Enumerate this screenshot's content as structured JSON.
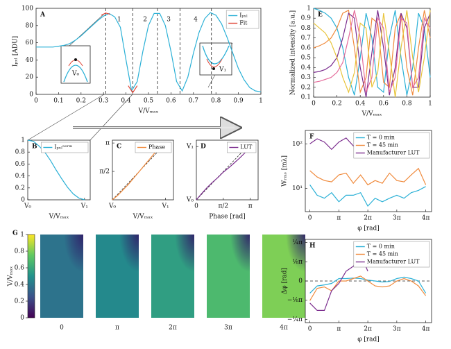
{
  "chart_data": [
    {
      "type": "line",
      "panel": "A",
      "xlabel": "V/Vₘₐₓ",
      "ylabel": "Iₚₓₗ [ADU]",
      "xlim": [
        0,
        1
      ],
      "ylim": [
        0,
        100
      ],
      "xticks": [
        0,
        0.1,
        0.2,
        0.3,
        0.4,
        0.5,
        0.6,
        0.7,
        0.8,
        0.9,
        1
      ],
      "yticks": [
        0,
        20,
        40,
        60,
        80,
        100
      ],
      "legend": "upper right",
      "series": [
        {
          "name": "Iₚₓₗ",
          "color": "#2ab0d6",
          "x": [
            0,
            0.025,
            0.05,
            0.075,
            0.1,
            0.125,
            0.15,
            0.175,
            0.2,
            0.225,
            0.25,
            0.275,
            0.3,
            0.325,
            0.35,
            0.375,
            0.4,
            0.425,
            0.45,
            0.475,
            0.5,
            0.525,
            0.55,
            0.575,
            0.6,
            0.625,
            0.65,
            0.675,
            0.7,
            0.725,
            0.75,
            0.775,
            0.8,
            0.825,
            0.85,
            0.875,
            0.9,
            0.925,
            0.95,
            0.975,
            1
          ],
          "values": [
            55,
            55,
            55,
            55,
            56,
            57,
            59,
            63,
            68,
            74,
            80,
            86,
            91,
            94,
            90,
            78,
            40,
            4,
            15,
            50,
            80,
            94,
            94,
            80,
            50,
            15,
            4,
            20,
            48,
            72,
            88,
            95,
            92,
            82,
            66,
            48,
            30,
            17,
            8,
            4,
            3
          ]
        },
        {
          "name": "Fit",
          "color": "#e0483a",
          "x": [
            0.29,
            0.31,
            0.33,
            0.37,
            0.41,
            0.43,
            0.45
          ],
          "values": [
            92,
            94.5,
            93,
            null,
            10,
            2,
            10
          ]
        }
      ],
      "vlines": [
        0.31,
        0.43,
        0.54,
        0.64,
        0.78
      ],
      "regions": [
        {
          "label": "1",
          "x": 0.37
        },
        {
          "label": "2",
          "x": 0.485
        },
        {
          "label": "3",
          "x": 0.59
        },
        {
          "label": "4",
          "x": 0.71
        }
      ],
      "insets": [
        {
          "label": "V₀"
        },
        {
          "label": "V₁"
        }
      ]
    },
    {
      "type": "line",
      "panel": "B",
      "xlabel": "V/Vₘₐₓ",
      "xlim": [
        0,
        1.1
      ],
      "ylim": [
        0,
        1
      ],
      "xticks": [
        {
          "value": 0,
          "label": "V₀"
        },
        {
          "value": 1,
          "label": "V₁"
        }
      ],
      "yticks": [
        0,
        0.2,
        0.4,
        0.6,
        0.8,
        1
      ],
      "legend": "upper right",
      "series": [
        {
          "name": "Iₚₓₗⁿᵒʳᵐ",
          "color": "#2ab0d6",
          "x": [
            0,
            0.1,
            0.2,
            0.3,
            0.4,
            0.5,
            0.6,
            0.7,
            0.8,
            0.9,
            1
          ],
          "values": [
            1,
            0.98,
            0.9,
            0.8,
            0.66,
            0.5,
            0.35,
            0.21,
            0.1,
            0.03,
            0
          ]
        }
      ]
    },
    {
      "type": "line",
      "panel": "C",
      "xlabel": "V/Vₘₐₓ",
      "xlim": [
        0,
        1.15
      ],
      "ylim": [
        0,
        3.3
      ],
      "xticks": [
        {
          "value": 0,
          "label": "V₀"
        },
        {
          "value": 1,
          "label": "V₁"
        }
      ],
      "yticks": [
        {
          "value": 1.571,
          "label": "π/2"
        },
        {
          "value": 3.142,
          "label": "π"
        }
      ],
      "legend": "upper right",
      "series": [
        {
          "name": "Phase",
          "color": "#f08a3c",
          "x": [
            0,
            0.1,
            0.2,
            0.3,
            0.4,
            0.5,
            0.6,
            0.7,
            0.8,
            0.9,
            1
          ],
          "values": [
            0,
            0.25,
            0.55,
            0.85,
            1.2,
            1.55,
            1.9,
            2.25,
            2.6,
            2.9,
            3.14
          ]
        }
      ]
    },
    {
      "type": "line",
      "panel": "D",
      "xlabel": "Phase [rad]",
      "xlim": [
        0,
        3.6
      ],
      "ylim": [
        0,
        1.12
      ],
      "xticks": [
        0,
        {
          "value": 1.571,
          "label": "π/2"
        },
        {
          "value": 3.142,
          "label": "π"
        }
      ],
      "yticks": [
        {
          "value": 0,
          "label": "V₀"
        },
        {
          "value": 1,
          "label": "V₁"
        }
      ],
      "legend": "upper right",
      "series": [
        {
          "name": "LUT",
          "color": "#7b2d8e",
          "x": [
            0,
            0.314,
            0.628,
            0.942,
            1.257,
            1.571,
            1.885,
            2.199,
            2.513,
            2.827,
            3.142
          ],
          "values": [
            0,
            0.12,
            0.23,
            0.33,
            0.42,
            0.52,
            0.6,
            0.69,
            0.78,
            0.88,
            1
          ]
        }
      ]
    },
    {
      "type": "line",
      "panel": "E",
      "xlabel": "V/Vₘₐₓ",
      "ylabel": "Normalized intensity [a.u.]",
      "xlim": [
        0,
        1
      ],
      "ylim": [
        0.1,
        1
      ],
      "xticks": [
        0,
        0.2,
        0.4,
        0.6,
        0.8,
        1
      ],
      "yticks": [
        0.1,
        0.2,
        0.3,
        0.4,
        0.5,
        0.6,
        0.7,
        0.8,
        0.9,
        1
      ],
      "x": [
        0,
        0.05,
        0.1,
        0.15,
        0.2,
        0.25,
        0.3,
        0.35,
        0.4,
        0.45,
        0.5,
        0.55,
        0.6,
        0.65,
        0.7,
        0.75,
        0.8,
        0.85,
        0.9,
        0.95,
        1
      ],
      "series": [
        {
          "color": "#2ab0d6",
          "values": [
            1.0,
            0.98,
            0.95,
            0.9,
            0.8,
            0.6,
            0.3,
            0.12,
            0.5,
            0.95,
            0.7,
            0.2,
            0.15,
            0.7,
            0.98,
            0.5,
            0.12,
            0.4,
            0.95,
            0.8,
            0.3
          ]
        },
        {
          "color": "#f08a3c",
          "values": [
            0.6,
            0.62,
            0.65,
            0.7,
            0.8,
            0.95,
            0.98,
            0.6,
            0.15,
            0.3,
            0.9,
            0.85,
            0.25,
            0.2,
            0.8,
            0.95,
            0.4,
            0.12,
            0.6,
            0.98,
            0.7
          ]
        },
        {
          "color": "#7b2d8e",
          "values": [
            0.35,
            0.36,
            0.38,
            0.42,
            0.5,
            0.7,
            0.95,
            0.9,
            0.4,
            0.1,
            0.55,
            0.98,
            0.6,
            0.12,
            0.4,
            0.95,
            0.8,
            0.2,
            0.2,
            0.8,
            0.95
          ]
        },
        {
          "color": "#e8c43a",
          "values": [
            0.85,
            0.8,
            0.75,
            0.65,
            0.5,
            0.3,
            0.15,
            0.35,
            0.85,
            0.8,
            0.2,
            0.35,
            0.95,
            0.55,
            0.1,
            0.6,
            0.98,
            0.5,
            0.15,
            0.5,
            0.98
          ]
        },
        {
          "color": "#e46a9a",
          "values": [
            0.25,
            0.26,
            0.28,
            0.3,
            0.35,
            0.45,
            0.7,
            0.98,
            0.7,
            0.15,
            0.3,
            0.9,
            0.8,
            0.15,
            0.3,
            0.9,
            0.85,
            0.2,
            0.3,
            0.9,
            0.8
          ]
        }
      ]
    },
    {
      "type": "line",
      "panel": "F",
      "xlabel": "φ [rad]",
      "ylabel": "Wᵣₘₛ [mλ]",
      "log_y": true,
      "xlim": [
        -0.5,
        13.2
      ],
      "ylim": [
        3,
        200
      ],
      "xticks": [
        0,
        {
          "value": 3.142,
          "label": "π"
        },
        {
          "value": 6.283,
          "label": "2π"
        },
        {
          "value": 9.425,
          "label": "3π"
        },
        {
          "value": 12.566,
          "label": "4π"
        }
      ],
      "yticks": [
        {
          "value": 10,
          "label": "10¹"
        },
        {
          "value": 100,
          "label": "10²"
        }
      ],
      "legend": "upper right",
      "x": [
        0,
        0.785,
        1.571,
        2.356,
        3.142,
        3.927,
        4.712,
        5.498,
        6.283,
        7.069,
        7.854,
        8.639,
        9.425,
        10.21,
        10.996,
        11.781,
        12.566
      ],
      "series": [
        {
          "name": "T = 0 min",
          "color": "#2ab0d6",
          "values": [
            12,
            7,
            6,
            8,
            5,
            7,
            7,
            8,
            4,
            6,
            5,
            6,
            7,
            6,
            8,
            9,
            11
          ]
        },
        {
          "name": "T = 45 min",
          "color": "#f08a3c",
          "values": [
            25,
            18,
            15,
            14,
            20,
            22,
            13,
            20,
            12,
            15,
            13,
            22,
            15,
            14,
            20,
            28,
            12
          ]
        },
        {
          "name": "Manufacturer LUT",
          "color": "#7b2d8e",
          "values": [
            100,
            130,
            110,
            75,
            110,
            135,
            90,
            80,
            95,
            null,
            null,
            null,
            null,
            null,
            null,
            null,
            null
          ]
        }
      ]
    },
    {
      "type": "heatmap",
      "panel": "G",
      "ylabel": "V/Vₘₐₓ",
      "colormap": "viridis",
      "categories": [
        "0",
        "π",
        "2π",
        "3π",
        "4π"
      ],
      "values": [
        0.38,
        0.47,
        0.56,
        0.68,
        0.8
      ],
      "ylim": [
        0,
        1
      ],
      "yticks": [
        0,
        0.2,
        0.4,
        0.6,
        0.8,
        1
      ]
    },
    {
      "type": "line",
      "panel": "H",
      "xlabel": "φ [rad]",
      "ylabel": "Δφ [rad]",
      "xlim": [
        -0.5,
        13.2
      ],
      "ylim": [
        -0.85,
        0.85
      ],
      "xticks": [
        0,
        {
          "value": 3.142,
          "label": "π"
        },
        {
          "value": 6.283,
          "label": "2π"
        },
        {
          "value": 9.425,
          "label": "3π"
        },
        {
          "value": 12.566,
          "label": "4π"
        }
      ],
      "yticks": [
        {
          "value": -0.785,
          "label": "−¼π"
        },
        {
          "value": -0.393,
          "label": "−⅛π"
        },
        0,
        {
          "value": 0.393,
          "label": "⅛π"
        },
        {
          "value": 0.785,
          "label": "¼π"
        }
      ],
      "legend": "upper right",
      "hline": 0,
      "x": [
        0,
        0.785,
        1.571,
        2.356,
        3.142,
        3.927,
        4.712,
        5.498,
        6.283,
        7.069,
        7.854,
        8.639,
        9.425,
        10.21,
        10.996,
        11.781,
        12.566
      ],
      "series": [
        {
          "name": "T = 0 min",
          "color": "#2ab0d6",
          "values": [
            -0.25,
            -0.1,
            -0.08,
            -0.05,
            0.05,
            0.05,
            0.06,
            0.05,
            0.02,
            0.0,
            -0.02,
            -0.01,
            0.05,
            0.08,
            0.05,
            0.0,
            -0.25
          ]
        },
        {
          "name": "T = 45 min",
          "color": "#f08a3c",
          "values": [
            -0.4,
            -0.15,
            -0.12,
            -0.2,
            0.0,
            0.0,
            0.05,
            0.1,
            0.0,
            -0.1,
            -0.12,
            -0.1,
            0.0,
            0.05,
            0.0,
            -0.1,
            -0.3
          ]
        },
        {
          "name": "Manufacturer LUT",
          "color": "#7b2d8e",
          "values": [
            -0.45,
            -0.6,
            -0.6,
            -0.2,
            -0.05,
            0.2,
            0.3,
            0.55,
            0.2,
            null,
            null,
            null,
            null,
            null,
            null,
            null,
            null
          ]
        }
      ]
    }
  ]
}
